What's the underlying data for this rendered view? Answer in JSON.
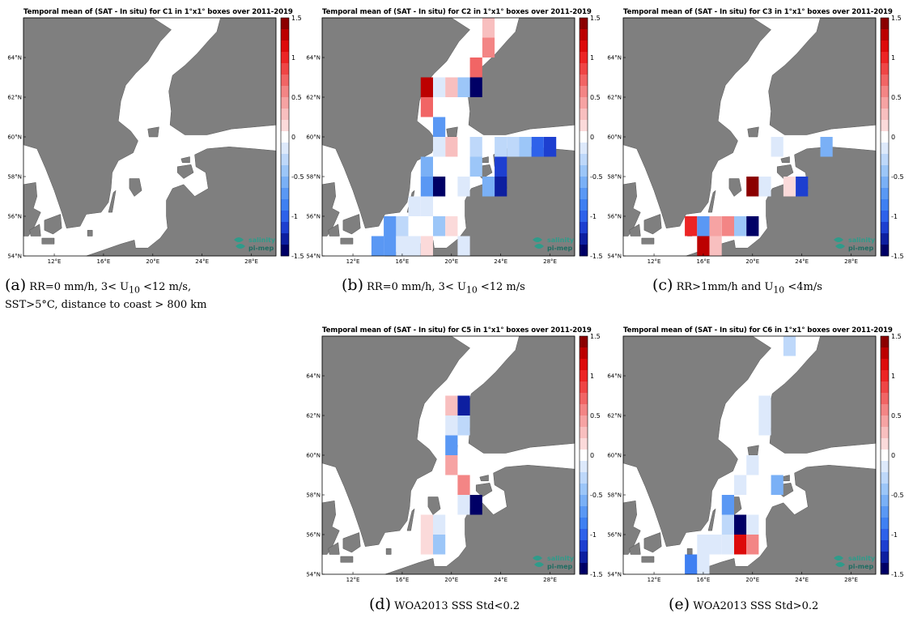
{
  "colorbar": {
    "ticks": [
      "1.5",
      "1",
      "0.5",
      "0",
      "-0.5",
      "-1",
      "-1.5"
    ],
    "colors": [
      "#000066",
      "#0d1fa0",
      "#1d3fd0",
      "#2e62ea",
      "#3f80f2",
      "#5a98f4",
      "#7ab0f6",
      "#9cc6f8",
      "#bed8fa",
      "#dde9fb",
      "#ffffff",
      "#fbdada",
      "#f8bfbf",
      "#f6a3a3",
      "#f38585",
      "#f16565",
      "#ef4545",
      "#ec2424",
      "#dd0a0a",
      "#bc0000",
      "#8b0000"
    ]
  },
  "axes": {
    "lat_ticks": [
      "64°N",
      "62°N",
      "60°N",
      "58°N",
      "56°N",
      "54°N"
    ],
    "lon_ticks": [
      "12°E",
      "16°E",
      "20°E",
      "24°E",
      "28°E"
    ]
  },
  "logo": {
    "line1": "salinity",
    "line2": "pi-mep"
  },
  "panels": [
    {
      "id": "a",
      "title": "Temporal mean of (SAT - In situ) for C1 in 1°x1° boxes over 2011-2019",
      "caption_label": "(a)",
      "caption": "RR=0 mm/h, 3< U10 <12 m/s, SST>5°C, distance to coast > 800 km",
      "caption_line1": "RR=0   mm/h,   3<   U",
      "caption_sub": "10",
      "caption_line1b": "   <12   m/s,",
      "caption_line2": "SST>5°C, distance to coast > 800 km",
      "cells": []
    },
    {
      "id": "b",
      "title": "Temporal mean of (SAT - In situ) for C2 in 1°x1° boxes over 2011-2019",
      "caption_label": "(b)",
      "caption_pre": "RR=0 mm/h, 3< U",
      "caption_sub": "10",
      "caption_post": " <12 m/s",
      "cells": [
        {
          "lon": 23,
          "lat": 65,
          "v": 0.25
        },
        {
          "lon": 23,
          "lat": 64,
          "v": 0.6
        },
        {
          "lon": 22,
          "lat": 63,
          "v": 0.7
        },
        {
          "lon": 22,
          "lat": 62,
          "v": -1.5
        },
        {
          "lon": 21,
          "lat": 62,
          "v": -0.4
        },
        {
          "lon": 18,
          "lat": 62,
          "v": 1.4
        },
        {
          "lon": 19,
          "lat": 62,
          "v": -0.1
        },
        {
          "lon": 20,
          "lat": 62,
          "v": 0.3
        },
        {
          "lon": 18,
          "lat": 61,
          "v": 0.8
        },
        {
          "lon": 19,
          "lat": 60,
          "v": -0.8
        },
        {
          "lon": 20,
          "lat": 59,
          "v": 0.25
        },
        {
          "lon": 19,
          "lat": 59,
          "v": -0.15
        },
        {
          "lon": 22,
          "lat": 59,
          "v": -0.35
        },
        {
          "lon": 24,
          "lat": 59,
          "v": -0.35
        },
        {
          "lon": 25,
          "lat": 59,
          "v": -0.35
        },
        {
          "lon": 26,
          "lat": 59,
          "v": -0.5
        },
        {
          "lon": 27,
          "lat": 59,
          "v": -1.0
        },
        {
          "lon": 28,
          "lat": 59,
          "v": -1.2
        },
        {
          "lon": 22,
          "lat": 58,
          "v": -0.4
        },
        {
          "lon": 24,
          "lat": 58,
          "v": -1.2
        },
        {
          "lon": 18,
          "lat": 58,
          "v": -0.6
        },
        {
          "lon": 19,
          "lat": 57,
          "v": -1.5
        },
        {
          "lon": 18,
          "lat": 57,
          "v": -0.7
        },
        {
          "lon": 21,
          "lat": 57,
          "v": -0.15
        },
        {
          "lon": 23,
          "lat": 57,
          "v": -0.6
        },
        {
          "lon": 24,
          "lat": 57,
          "v": -1.4
        },
        {
          "lon": 17,
          "lat": 56,
          "v": -0.15
        },
        {
          "lon": 18,
          "lat": 56,
          "v": -0.15
        },
        {
          "lon": 16,
          "lat": 55,
          "v": -0.3
        },
        {
          "lon": 19,
          "lat": 55,
          "v": -0.4
        },
        {
          "lon": 20,
          "lat": 55,
          "v": 0.2
        },
        {
          "lon": 15,
          "lat": 55,
          "v": -0.8
        },
        {
          "lon": 14,
          "lat": 54,
          "v": -0.8
        },
        {
          "lon": 15,
          "lat": 54,
          "v": -0.8
        },
        {
          "lon": 16,
          "lat": 54,
          "v": -0.15
        },
        {
          "lon": 18,
          "lat": 54,
          "v": 0.2
        },
        {
          "lon": 21,
          "lat": 54,
          "v": -0.15
        },
        {
          "lon": 17,
          "lat": 54,
          "v": -0.1
        }
      ]
    },
    {
      "id": "c",
      "title": "Temporal mean of (SAT - In situ) for C3 in 1°x1° boxes over 2011-2019",
      "caption_label": "(c)",
      "caption_pre": "RR>1mm/h and U",
      "caption_sub": "10",
      "caption_post": " <4m/s",
      "cells": [
        {
          "lon": 22,
          "lat": 59,
          "v": -0.2
        },
        {
          "lon": 26,
          "lat": 59,
          "v": -0.6
        },
        {
          "lon": 20,
          "lat": 57,
          "v": 1.5
        },
        {
          "lon": 21,
          "lat": 57,
          "v": -0.1
        },
        {
          "lon": 23,
          "lat": 57,
          "v": 0.2
        },
        {
          "lon": 24,
          "lat": 57,
          "v": -1.2
        },
        {
          "lon": 15,
          "lat": 55,
          "v": 1.1
        },
        {
          "lon": 16,
          "lat": 55,
          "v": -0.7
        },
        {
          "lon": 17,
          "lat": 55,
          "v": 0.45
        },
        {
          "lon": 18,
          "lat": 55,
          "v": 0.55
        },
        {
          "lon": 19,
          "lat": 55,
          "v": -0.4
        },
        {
          "lon": 20,
          "lat": 55,
          "v": -1.5
        },
        {
          "lon": 16,
          "lat": 54,
          "v": 1.4
        },
        {
          "lon": 17,
          "lat": 54,
          "v": 0.3
        }
      ]
    },
    {
      "id": "d",
      "title": "Temporal mean of (SAT - In situ) for C5 in 1°x1° boxes over 2011-2019",
      "caption_label": "(d)",
      "caption": "WOA2013 SSS Std<0.2",
      "cells": [
        {
          "lon": 20,
          "lat": 62,
          "v": 0.3
        },
        {
          "lon": 21,
          "lat": 62,
          "v": -1.4
        },
        {
          "lon": 20,
          "lat": 61,
          "v": -0.15
        },
        {
          "lon": 21,
          "lat": 61,
          "v": -0.3
        },
        {
          "lon": 20,
          "lat": 60,
          "v": -0.8
        },
        {
          "lon": 20,
          "lat": 59,
          "v": 0.45
        },
        {
          "lon": 21,
          "lat": 58,
          "v": 0.6
        },
        {
          "lon": 21,
          "lat": 57,
          "v": -0.2
        },
        {
          "lon": 22,
          "lat": 57,
          "v": -1.5
        },
        {
          "lon": 18,
          "lat": 56,
          "v": 0.15
        },
        {
          "lon": 19,
          "lat": 56,
          "v": -0.15
        },
        {
          "lon": 18,
          "lat": 55,
          "v": 0.15
        },
        {
          "lon": 19,
          "lat": 55,
          "v": -0.5
        }
      ]
    },
    {
      "id": "e",
      "title": "Temporal mean of (SAT - In situ) for C6 in 1°x1° boxes over 2011-2019",
      "caption_label": "(e)",
      "caption": "WOA2013 SSS Std>0.2",
      "cells": [
        {
          "lon": 23,
          "lat": 65,
          "v": -0.35
        },
        {
          "lon": 21,
          "lat": 62,
          "v": -0.2
        },
        {
          "lon": 21,
          "lat": 61,
          "v": -0.2
        },
        {
          "lon": 20,
          "lat": 59,
          "v": -0.2
        },
        {
          "lon": 19,
          "lat": 58,
          "v": -0.1
        },
        {
          "lon": 22,
          "lat": 58,
          "v": -0.6
        },
        {
          "lon": 18,
          "lat": 57,
          "v": -0.7
        },
        {
          "lon": 18,
          "lat": 56,
          "v": -0.35
        },
        {
          "lon": 19,
          "lat": 56,
          "v": -1.5
        },
        {
          "lon": 20,
          "lat": 56,
          "v": -0.15
        },
        {
          "lon": 16,
          "lat": 55,
          "v": -0.15
        },
        {
          "lon": 17,
          "lat": 55,
          "v": -0.2
        },
        {
          "lon": 18,
          "lat": 55,
          "v": -0.1
        },
        {
          "lon": 19,
          "lat": 55,
          "v": 1.2
        },
        {
          "lon": 20,
          "lat": 55,
          "v": 0.6
        },
        {
          "lon": 15,
          "lat": 54,
          "v": -0.9
        },
        {
          "lon": 16,
          "lat": 54,
          "v": -0.15
        }
      ]
    }
  ]
}
